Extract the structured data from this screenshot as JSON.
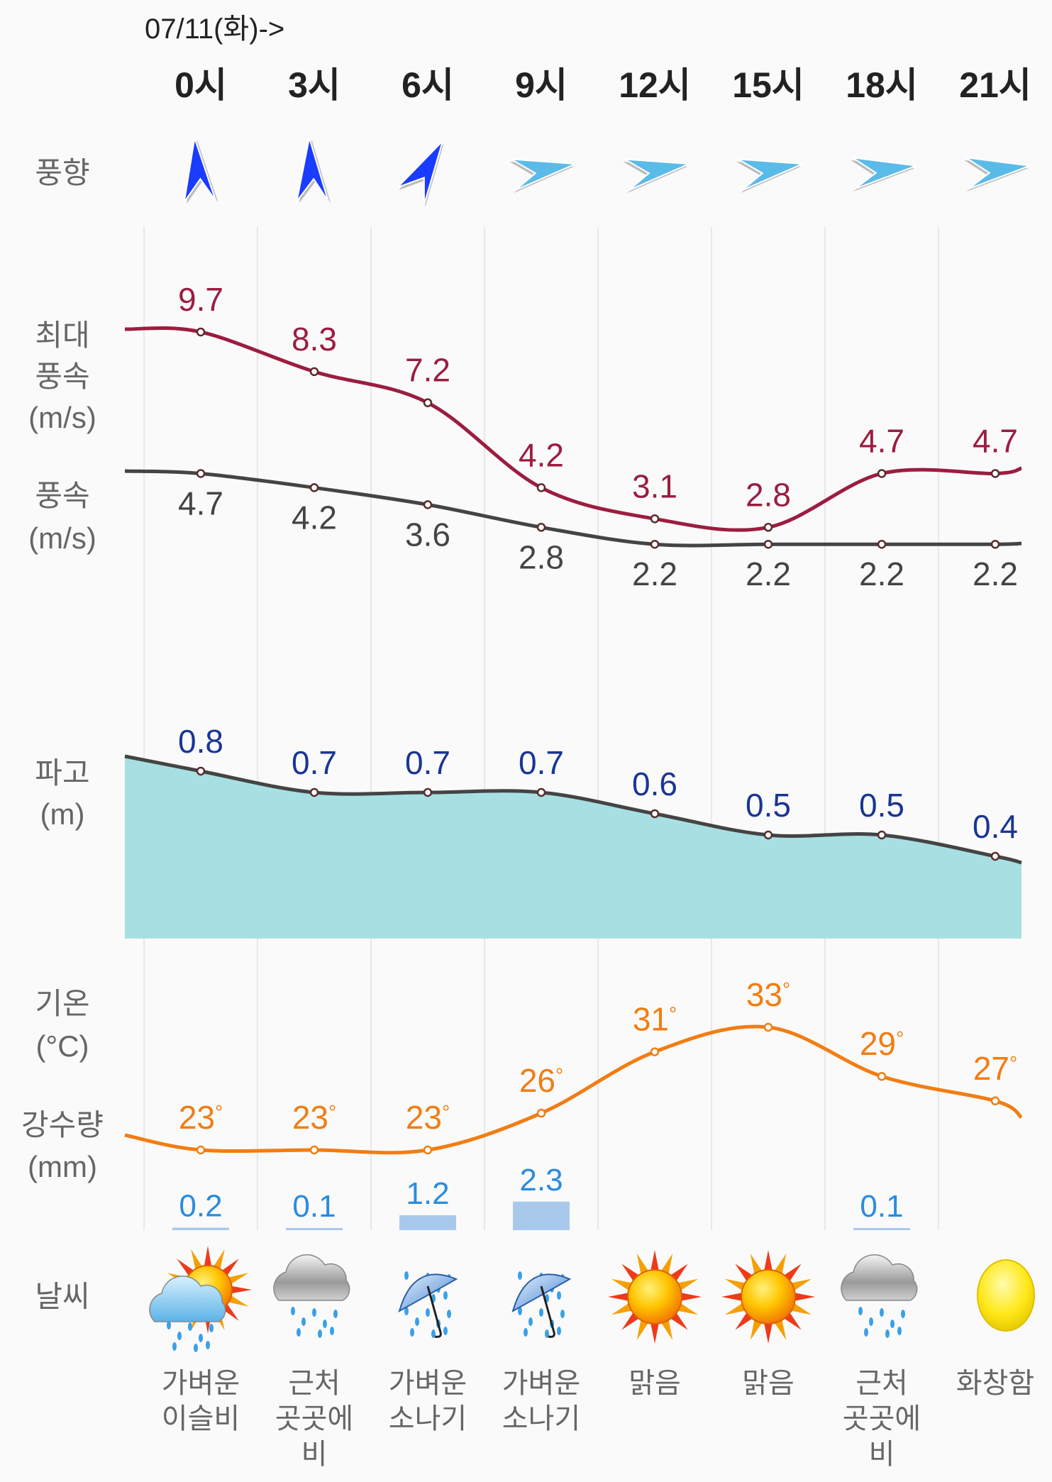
{
  "header": {
    "date": "07/11(화)->"
  },
  "hours": [
    "0시",
    "3시",
    "6시",
    "9시",
    "12시",
    "15시",
    "18시",
    "21시"
  ],
  "row_labels": {
    "wind_dir": "풍향",
    "max_wind_1": "최대",
    "max_wind_2": "풍속",
    "max_wind_3": "(m/s)",
    "wind_1": "풍속",
    "wind_2": "(m/s)",
    "wave_1": "파고",
    "wave_2": "(m)",
    "temp_1": "기온",
    "temp_2": "(°C)",
    "rain_1": "강수량",
    "rain_2": "(mm)",
    "weather": "날씨"
  },
  "wind_direction": [
    {
      "heading": -10,
      "color": "#1a3cff"
    },
    {
      "heading": -8,
      "color": "#1a3cff"
    },
    {
      "heading": 25,
      "color": "#1a3cff"
    },
    {
      "heading": 75,
      "color": "#5bbbe8"
    },
    {
      "heading": 75,
      "color": "#5bbbe8"
    },
    {
      "heading": 75,
      "color": "#5bbbe8"
    },
    {
      "heading": 78,
      "color": "#5bbbe8"
    },
    {
      "heading": 78,
      "color": "#5bbbe8"
    }
  ],
  "chart_data": {
    "type": "line",
    "x": [
      "0시",
      "3시",
      "6시",
      "9시",
      "12시",
      "15시",
      "18시",
      "21시"
    ],
    "series": [
      {
        "name": "최대 풍속 (m/s)",
        "values": [
          9.7,
          8.3,
          7.2,
          4.2,
          3.1,
          2.8,
          4.7,
          4.7
        ],
        "color": "#9b1d40"
      },
      {
        "name": "풍속 (m/s)",
        "values": [
          4.7,
          4.2,
          3.6,
          2.8,
          2.2,
          2.2,
          2.2,
          2.2
        ],
        "color": "#444444"
      },
      {
        "name": "파고 (m)",
        "values": [
          0.8,
          0.7,
          0.7,
          0.7,
          0.6,
          0.5,
          0.5,
          0.4
        ],
        "color": "#1a3595",
        "fill": "#a8dfe3"
      },
      {
        "name": "기온 (°C)",
        "values": [
          23,
          23,
          23,
          26,
          31,
          33,
          29,
          27
        ],
        "color": "#f27d12"
      },
      {
        "name": "강수량 (mm)",
        "type": "bar",
        "values": [
          0.2,
          0.1,
          1.2,
          2.3,
          null,
          null,
          0.1,
          null
        ],
        "color": "#a9c9ec",
        "label_color": "#2a8be0"
      }
    ]
  },
  "weather": [
    {
      "icon": "sun-cloud-rain",
      "text": "가벼운 이슬비"
    },
    {
      "icon": "cloud-rain",
      "text": "근처 곳곳에 비"
    },
    {
      "icon": "umbrella-rain",
      "text": "가벼운 소나기"
    },
    {
      "icon": "umbrella-rain",
      "text": "가벼운 소나기"
    },
    {
      "icon": "sun",
      "text": "맑음"
    },
    {
      "icon": "sun",
      "text": "맑음"
    },
    {
      "icon": "cloud-rain",
      "text": "근처 곳곳에 비"
    },
    {
      "icon": "moon",
      "text": "화창함"
    }
  ]
}
